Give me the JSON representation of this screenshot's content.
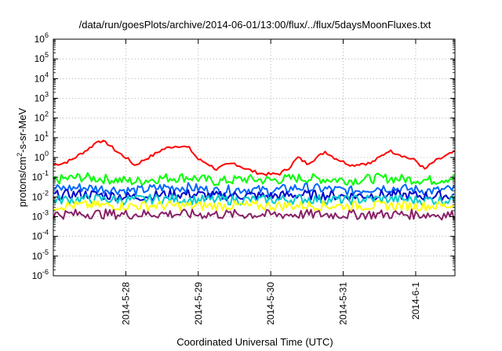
{
  "chart_data": {
    "type": "line",
    "title": "/data/run/goesPlots/archive/2014-06-01/13:00/flux/../flux/5daysMoonFluxes.txt",
    "xlabel": "Coordinated Universal Time (UTC)",
    "ylabel": "protons/cm²-s-sr-MeV",
    "ylabel_base": "protons/cm",
    "ylabel_sup": "2",
    "ylabel_rest": "-s-sr-MeV",
    "yscale": "log",
    "ylim": [
      1e-06,
      1000000.0
    ],
    "xlim": [
      "2014-05-27T00:00",
      "2014-06-01T13:00"
    ],
    "grid": true,
    "yticks": [
      {
        "base": "10",
        "exp": "-6"
      },
      {
        "base": "10",
        "exp": "-5"
      },
      {
        "base": "10",
        "exp": "-4"
      },
      {
        "base": "10",
        "exp": "-3"
      },
      {
        "base": "10",
        "exp": "-2"
      },
      {
        "base": "10",
        "exp": "-1"
      },
      {
        "base": "10",
        "exp": "0"
      },
      {
        "base": "10",
        "exp": "1"
      },
      {
        "base": "10",
        "exp": "2"
      },
      {
        "base": "10",
        "exp": "3"
      },
      {
        "base": "10",
        "exp": "4"
      },
      {
        "base": "10",
        "exp": "5"
      },
      {
        "base": "10",
        "exp": "6"
      }
    ],
    "xticks": [
      {
        "label": "2014-5-28",
        "date": "2014-05-28T00:00"
      },
      {
        "label": "2014-5-29",
        "date": "2014-05-29T00:00"
      },
      {
        "label": "2014-5-30",
        "date": "2014-05-30T00:00"
      },
      {
        "label": "2014-5-31",
        "date": "2014-05-31T00:00"
      },
      {
        "label": "2014-6-1",
        "date": "2014-06-01T00:00"
      }
    ],
    "series": [
      {
        "color": "#ff0000",
        "points": [
          [
            "2014-05-27T00:00",
            0.45
          ],
          [
            "2014-05-27T03:00",
            0.5
          ],
          [
            "2014-05-27T06:00",
            0.75
          ],
          [
            "2014-05-27T09:00",
            1.5
          ],
          [
            "2014-05-27T12:00",
            3.0
          ],
          [
            "2014-05-27T15:00",
            7.5
          ],
          [
            "2014-05-27T18:00",
            5.0
          ],
          [
            "2014-05-27T21:00",
            2.0
          ],
          [
            "2014-05-28T00:00",
            1.0
          ],
          [
            "2014-05-28T03:00",
            0.4
          ],
          [
            "2014-05-28T06:00",
            0.75
          ],
          [
            "2014-05-28T09:00",
            1.3
          ],
          [
            "2014-05-28T12:00",
            2.5
          ],
          [
            "2014-05-28T15:00",
            3.5
          ],
          [
            "2014-05-28T18:00",
            4.0
          ],
          [
            "2014-05-28T21:00",
            3.0
          ],
          [
            "2014-05-29T00:00",
            0.8
          ],
          [
            "2014-05-29T03:00",
            0.5
          ],
          [
            "2014-05-29T06:00",
            0.25
          ],
          [
            "2014-05-29T09:00",
            0.4
          ],
          [
            "2014-05-29T12:00",
            0.5
          ],
          [
            "2014-05-29T15:00",
            0.3
          ],
          [
            "2014-05-29T18:00",
            0.2
          ],
          [
            "2014-05-29T21:00",
            0.15
          ],
          [
            "2014-05-30T00:00",
            0.14
          ],
          [
            "2014-05-30T03:00",
            0.15
          ],
          [
            "2014-05-30T06:00",
            0.3
          ],
          [
            "2014-05-30T09:00",
            1.0
          ],
          [
            "2014-05-30T12:00",
            0.5
          ],
          [
            "2014-05-30T15:00",
            0.9
          ],
          [
            "2014-05-30T18:00",
            2.0
          ],
          [
            "2014-05-30T21:00",
            1.0
          ],
          [
            "2014-05-31T00:00",
            0.6
          ],
          [
            "2014-05-31T03:00",
            0.4
          ],
          [
            "2014-05-31T06:00",
            0.5
          ],
          [
            "2014-05-31T09:00",
            0.5
          ],
          [
            "2014-05-31T12:00",
            1.0
          ],
          [
            "2014-05-31T15:00",
            2.2
          ],
          [
            "2014-05-31T18:00",
            1.6
          ],
          [
            "2014-05-31T21:00",
            1.0
          ],
          [
            "2014-06-01T00:00",
            0.7
          ],
          [
            "2014-06-01T03:00",
            0.25
          ],
          [
            "2014-06-01T06:00",
            0.6
          ],
          [
            "2014-06-01T09:00",
            1.0
          ],
          [
            "2014-06-01T13:00",
            2.0
          ]
        ]
      },
      {
        "color": "#00ff00",
        "points": [
          [
            "2014-05-27T00:00",
            0.07
          ],
          [
            "2014-05-27T09:00",
            0.1
          ],
          [
            "2014-05-27T18:00",
            0.08
          ],
          [
            "2014-05-28T03:00",
            0.06
          ],
          [
            "2014-05-28T12:00",
            0.09
          ],
          [
            "2014-05-28T21:00",
            0.1
          ],
          [
            "2014-05-29T06:00",
            0.06
          ],
          [
            "2014-05-29T15:00",
            0.08
          ],
          [
            "2014-05-30T00:00",
            0.07
          ],
          [
            "2014-05-30T09:00",
            0.09
          ],
          [
            "2014-05-30T18:00",
            0.08
          ],
          [
            "2014-05-31T03:00",
            0.07
          ],
          [
            "2014-05-31T12:00",
            0.09
          ],
          [
            "2014-05-31T21:00",
            0.08
          ],
          [
            "2014-06-01T06:00",
            0.07
          ],
          [
            "2014-06-01T13:00",
            0.1
          ]
        ]
      },
      {
        "color": "#0066ff",
        "points": [
          [
            "2014-05-27T00:00",
            0.025
          ],
          [
            "2014-05-27T09:00",
            0.03
          ],
          [
            "2014-05-27T18:00",
            0.025
          ],
          [
            "2014-05-28T03:00",
            0.02
          ],
          [
            "2014-05-28T12:00",
            0.03
          ],
          [
            "2014-05-28T21:00",
            0.03
          ],
          [
            "2014-05-29T06:00",
            0.02
          ],
          [
            "2014-05-29T15:00",
            0.025
          ],
          [
            "2014-05-30T00:00",
            0.02
          ],
          [
            "2014-05-30T09:00",
            0.03
          ],
          [
            "2014-05-30T18:00",
            0.025
          ],
          [
            "2014-05-31T03:00",
            0.02
          ],
          [
            "2014-05-31T12:00",
            0.03
          ],
          [
            "2014-05-31T21:00",
            0.025
          ],
          [
            "2014-06-01T06:00",
            0.02
          ],
          [
            "2014-06-01T13:00",
            0.025
          ]
        ]
      },
      {
        "color": "#0000cc",
        "points": [
          [
            "2014-05-27T00:00",
            0.012
          ],
          [
            "2014-05-27T09:00",
            0.014
          ],
          [
            "2014-05-27T18:00",
            0.012
          ],
          [
            "2014-05-28T03:00",
            0.01
          ],
          [
            "2014-05-28T12:00",
            0.013
          ],
          [
            "2014-05-28T21:00",
            0.014
          ],
          [
            "2014-05-29T06:00",
            0.011
          ],
          [
            "2014-05-29T15:00",
            0.012
          ],
          [
            "2014-05-30T00:00",
            0.011
          ],
          [
            "2014-05-30T09:00",
            0.013
          ],
          [
            "2014-05-30T18:00",
            0.012
          ],
          [
            "2014-05-31T03:00",
            0.011
          ],
          [
            "2014-05-31T12:00",
            0.013
          ],
          [
            "2014-05-31T21:00",
            0.012
          ],
          [
            "2014-06-01T06:00",
            0.011
          ],
          [
            "2014-06-01T13:00",
            0.012
          ]
        ]
      },
      {
        "color": "#00cccc",
        "points": [
          [
            "2014-05-27T00:00",
            0.007
          ],
          [
            "2014-05-27T12:00",
            0.008
          ],
          [
            "2014-05-28T00:00",
            0.007
          ],
          [
            "2014-05-28T12:00",
            0.008
          ],
          [
            "2014-05-29T00:00",
            0.007
          ],
          [
            "2014-05-29T12:00",
            0.007
          ],
          [
            "2014-05-30T00:00",
            0.007
          ],
          [
            "2014-05-30T12:00",
            0.008
          ],
          [
            "2014-05-31T00:00",
            0.007
          ],
          [
            "2014-05-31T12:00",
            0.008
          ],
          [
            "2014-06-01T00:00",
            0.007
          ],
          [
            "2014-06-01T13:00",
            0.007
          ]
        ]
      },
      {
        "color": "#ffff00",
        "points": [
          [
            "2014-05-27T00:00",
            0.0035
          ],
          [
            "2014-05-27T12:00",
            0.0038
          ],
          [
            "2014-05-28T00:00",
            0.0035
          ],
          [
            "2014-05-28T12:00",
            0.0037
          ],
          [
            "2014-05-29T00:00",
            0.0035
          ],
          [
            "2014-05-29T12:00",
            0.0036
          ],
          [
            "2014-05-30T00:00",
            0.0035
          ],
          [
            "2014-05-30T12:00",
            0.0037
          ],
          [
            "2014-05-31T00:00",
            0.0035
          ],
          [
            "2014-05-31T12:00",
            0.0036
          ],
          [
            "2014-06-01T00:00",
            0.0035
          ],
          [
            "2014-06-01T13:00",
            0.0036
          ]
        ]
      },
      {
        "color": "#882266",
        "points": [
          [
            "2014-05-27T00:00",
            0.0013
          ],
          [
            "2014-05-27T12:00",
            0.0014
          ],
          [
            "2014-05-28T00:00",
            0.0013
          ],
          [
            "2014-05-28T12:00",
            0.0014
          ],
          [
            "2014-05-29T00:00",
            0.0013
          ],
          [
            "2014-05-29T12:00",
            0.0013
          ],
          [
            "2014-05-30T00:00",
            0.00125
          ],
          [
            "2014-05-30T12:00",
            0.0013
          ],
          [
            "2014-05-31T00:00",
            0.00125
          ],
          [
            "2014-05-31T12:00",
            0.0013
          ],
          [
            "2014-06-01T00:00",
            0.0013
          ],
          [
            "2014-06-01T13:00",
            0.0012
          ]
        ]
      }
    ]
  }
}
